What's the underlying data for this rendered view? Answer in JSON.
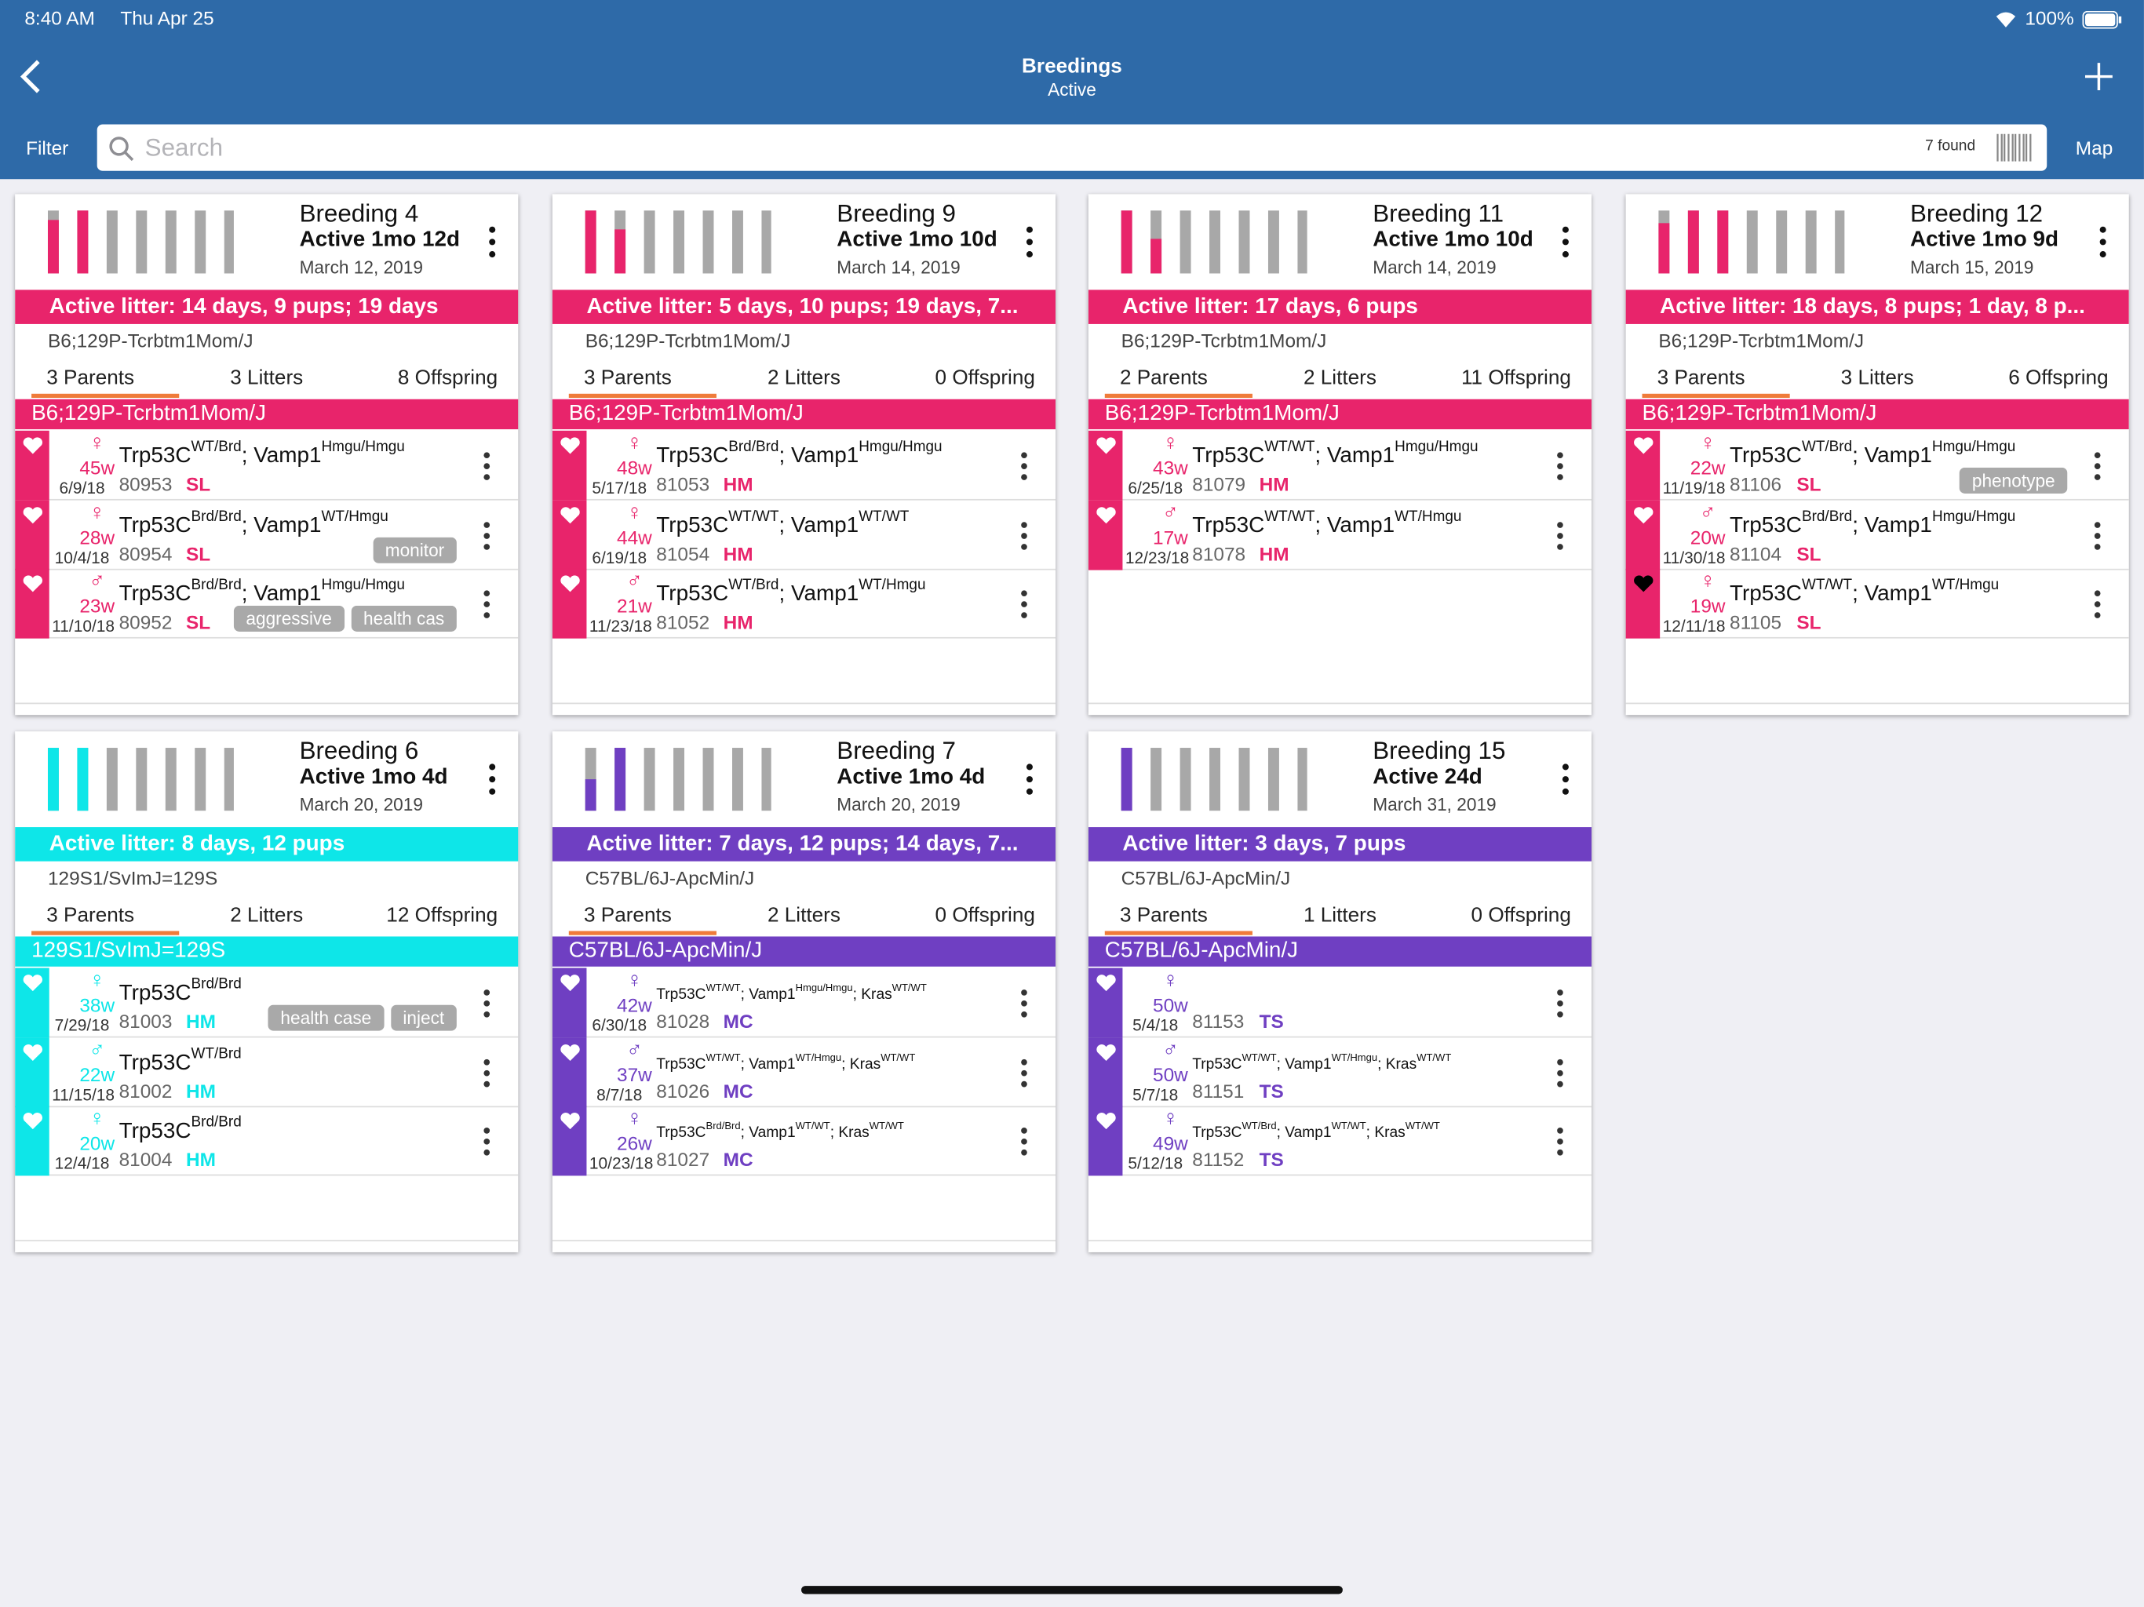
{
  "status_bar": {
    "time": "8:40 AM",
    "date": "Thu Apr 25",
    "battery": "100%"
  },
  "nav": {
    "title": "Breedings",
    "subtitle": "Active",
    "filter": "Filter",
    "search_placeholder": "Search",
    "found": "7 found",
    "map": "Map"
  },
  "cards": [
    {
      "title": "Breeding 4",
      "status": "Active 1mo 12d",
      "date": "March 12, 2019",
      "litter": "Active litter: 14 days, 9 pups; 19 days",
      "color": "#e8246b",
      "strain": "B6;129P-Tcrbtm1Mom/J",
      "parents": "3 Parents",
      "litters": "3 Litters",
      "offspring": "8 Offspring",
      "group": "B6;129P-Tcrbtm1Mom/J",
      "mice": [
        {
          "sex": "♀",
          "age": "45w",
          "dob": "6/9/18",
          "id": "80953",
          "code": "SL",
          "heart": "outline",
          "genotype": [
            {
              "text": "Trp53C",
              "sup": "WT/Brd"
            },
            {
              "text": "; Vamp1",
              "sup": "Hmgu/Hmgu"
            }
          ],
          "tags": []
        },
        {
          "sex": "♀",
          "age": "28w",
          "dob": "10/4/18",
          "id": "80954",
          "code": "SL",
          "heart": "outline",
          "genotype": [
            {
              "text": "Trp53C",
              "sup": "Brd/Brd"
            },
            {
              "text": "; Vamp1",
              "sup": "WT/Hmgu"
            }
          ],
          "tags": [
            "monitor"
          ]
        },
        {
          "sex": "♂",
          "age": "23w",
          "dob": "11/10/18",
          "id": "80952",
          "code": "SL",
          "heart": "outline",
          "genotype": [
            {
              "text": "Trp53C",
              "sup": "Brd/Brd"
            },
            {
              "text": "; Vamp1",
              "sup": "Hmgu/Hmgu"
            }
          ],
          "tags": [
            "aggressive",
            "health cas"
          ]
        }
      ]
    },
    {
      "title": "Breeding 9",
      "status": "Active 1mo 10d",
      "date": "March 14, 2019",
      "litter": "Active litter: 5 days, 10 pups; 19 days, 7...",
      "color": "#e8246b",
      "strain": "B6;129P-Tcrbtm1Mom/J",
      "parents": "3 Parents",
      "litters": "2 Litters",
      "offspring": "0 Offspring",
      "group": "B6;129P-Tcrbtm1Mom/J",
      "mice": [
        {
          "sex": "♀",
          "age": "48w",
          "dob": "5/17/18",
          "id": "81053",
          "code": "HM",
          "heart": "outline",
          "genotype": [
            {
              "text": "Trp53C",
              "sup": "Brd/Brd"
            },
            {
              "text": "; Vamp1",
              "sup": "Hmgu/Hmgu"
            }
          ],
          "tags": []
        },
        {
          "sex": "♀",
          "age": "44w",
          "dob": "6/19/18",
          "id": "81054",
          "code": "HM",
          "heart": "outline",
          "genotype": [
            {
              "text": "Trp53C",
              "sup": "WT/WT"
            },
            {
              "text": "; Vamp1",
              "sup": "WT/WT"
            }
          ],
          "tags": []
        },
        {
          "sex": "♂",
          "age": "21w",
          "dob": "11/23/18",
          "id": "81052",
          "code": "HM",
          "heart": "outline",
          "genotype": [
            {
              "text": "Trp53C",
              "sup": "WT/Brd"
            },
            {
              "text": "; Vamp1",
              "sup": "WT/Hmgu"
            }
          ],
          "tags": []
        }
      ]
    },
    {
      "title": "Breeding 11",
      "status": "Active 1mo 10d",
      "date": "March 14, 2019",
      "litter": "Active litter: 17 days, 6 pups",
      "color": "#e8246b",
      "strain": "B6;129P-Tcrbtm1Mom/J",
      "parents": "2 Parents",
      "litters": "2 Litters",
      "offspring": "11 Offspring",
      "group": "B6;129P-Tcrbtm1Mom/J",
      "mice": [
        {
          "sex": "♀",
          "age": "43w",
          "dob": "6/25/18",
          "id": "81079",
          "code": "HM",
          "heart": "outline",
          "genotype": [
            {
              "text": "Trp53C",
              "sup": "WT/WT"
            },
            {
              "text": "; Vamp1",
              "sup": "Hmgu/Hmgu"
            }
          ],
          "tags": []
        },
        {
          "sex": "♂",
          "age": "17w",
          "dob": "12/23/18",
          "id": "81078",
          "code": "HM",
          "heart": "outline",
          "genotype": [
            {
              "text": "Trp53C",
              "sup": "WT/WT"
            },
            {
              "text": "; Vamp1",
              "sup": "WT/Hmgu"
            }
          ],
          "tags": []
        }
      ]
    },
    {
      "title": "Breeding 12",
      "status": "Active 1mo 9d",
      "date": "March 15, 2019",
      "litter": "Active litter: 18 days, 8 pups; 1 day, 8 p...",
      "color": "#e8246b",
      "strain": "B6;129P-Tcrbtm1Mom/J",
      "parents": "3 Parents",
      "litters": "3 Litters",
      "offspring": "6 Offspring",
      "group": "B6;129P-Tcrbtm1Mom/J",
      "mice": [
        {
          "sex": "♀",
          "age": "22w",
          "dob": "11/19/18",
          "id": "81106",
          "code": "SL",
          "heart": "outline",
          "genotype": [
            {
              "text": "Trp53C",
              "sup": "WT/Brd"
            },
            {
              "text": "; Vamp1",
              "sup": "Hmgu/Hmgu"
            }
          ],
          "tags": [
            "phenotype"
          ]
        },
        {
          "sex": "♂",
          "age": "20w",
          "dob": "11/30/18",
          "id": "81104",
          "code": "SL",
          "heart": "outline",
          "genotype": [
            {
              "text": "Trp53C",
              "sup": "Brd/Brd"
            },
            {
              "text": "; Vamp1",
              "sup": "Hmgu/Hmgu"
            }
          ],
          "tags": []
        },
        {
          "sex": "♀",
          "age": "19w",
          "dob": "12/11/18",
          "id": "81105",
          "code": "SL",
          "heart": "filled",
          "genotype": [
            {
              "text": "Trp53C",
              "sup": "WT/WT"
            },
            {
              "text": "; Vamp1",
              "sup": "WT/Hmgu"
            }
          ],
          "tags": []
        }
      ]
    },
    {
      "title": "Breeding 6",
      "status": "Active 1mo 4d",
      "date": "March 20, 2019",
      "litter": "Active litter: 8 days, 12 pups",
      "color": "#0ee6e8",
      "strain": "129S1/SvImJ=129S",
      "parents": "3 Parents",
      "litters": "2 Litters",
      "offspring": "12 Offspring",
      "group": "129S1/SvImJ=129S",
      "mice": [
        {
          "sex": "♀",
          "age": "38w",
          "dob": "7/29/18",
          "id": "81003",
          "code": "HM",
          "heart": "outline",
          "genotype": [
            {
              "text": "Trp53C",
              "sup": "Brd/Brd"
            }
          ],
          "tags": [
            "health case",
            "inject"
          ]
        },
        {
          "sex": "♂",
          "age": "22w",
          "dob": "11/15/18",
          "id": "81002",
          "code": "HM",
          "heart": "outline",
          "genotype": [
            {
              "text": "Trp53C",
              "sup": "WT/Brd"
            }
          ],
          "tags": []
        },
        {
          "sex": "♀",
          "age": "20w",
          "dob": "12/4/18",
          "id": "81004",
          "code": "HM",
          "heart": "outline",
          "genotype": [
            {
              "text": "Trp53C",
              "sup": "Brd/Brd"
            }
          ],
          "tags": []
        }
      ]
    },
    {
      "title": "Breeding 7",
      "status": "Active 1mo 4d",
      "date": "March 20, 2019",
      "litter": "Active litter: 7 days, 12 pups; 14 days, 7...",
      "color": "#6f3fc2",
      "strain": "C57BL/6J-ApcMin/J",
      "parents": "3 Parents",
      "litters": "2 Litters",
      "offspring": "0 Offspring",
      "group": "C57BL/6J-ApcMin/J",
      "mice": [
        {
          "sex": "♀",
          "age": "42w",
          "dob": "6/30/18",
          "id": "81028",
          "code": "MC",
          "heart": "outline",
          "genotype": [
            {
              "text": "Trp53C",
              "sup": "WT/WT"
            },
            {
              "text": "; Vamp1",
              "sup": "Hmgu/Hmgu"
            },
            {
              "text": "; Kras",
              "sup": "WT/WT"
            }
          ],
          "tags": []
        },
        {
          "sex": "♂",
          "age": "37w",
          "dob": "8/7/18",
          "id": "81026",
          "code": "MC",
          "heart": "outline",
          "genotype": [
            {
              "text": "Trp53C",
              "sup": "WT/WT"
            },
            {
              "text": "; Vamp1",
              "sup": "WT/Hmgu"
            },
            {
              "text": "; Kras",
              "sup": "WT/WT"
            }
          ],
          "tags": []
        },
        {
          "sex": "♀",
          "age": "26w",
          "dob": "10/23/18",
          "id": "81027",
          "code": "MC",
          "heart": "outline",
          "genotype": [
            {
              "text": "Trp53C",
              "sup": "Brd/Brd"
            },
            {
              "text": "; Vamp1",
              "sup": "WT/WT"
            },
            {
              "text": "; Kras",
              "sup": "WT/WT"
            }
          ],
          "tags": []
        }
      ]
    },
    {
      "title": "Breeding 15",
      "status": "Active 24d",
      "date": "March 31, 2019",
      "litter": "Active litter: 3 days, 7 pups",
      "color": "#6f3fc2",
      "strain": "C57BL/6J-ApcMin/J",
      "parents": "3 Parents",
      "litters": "1 Litters",
      "offspring": "0 Offspring",
      "group": "C57BL/6J-ApcMin/J",
      "mice": [
        {
          "sex": "♀",
          "age": "50w",
          "dob": "5/4/18",
          "id": "81153",
          "code": "TS",
          "heart": "outline",
          "genotype": [],
          "tags": []
        },
        {
          "sex": "♂",
          "age": "50w",
          "dob": "5/7/18",
          "id": "81151",
          "code": "TS",
          "heart": "outline",
          "genotype": [
            {
              "text": "Trp53C",
              "sup": "WT/WT"
            },
            {
              "text": "; Vamp1",
              "sup": "WT/Hmgu"
            },
            {
              "text": "; Kras",
              "sup": "WT/WT"
            }
          ],
          "tags": []
        },
        {
          "sex": "♀",
          "age": "49w",
          "dob": "5/12/18",
          "id": "81152",
          "code": "TS",
          "heart": "outline",
          "genotype": [
            {
              "text": "Trp53C",
              "sup": "WT/Brd"
            },
            {
              "text": "; Vamp1",
              "sup": "WT/WT"
            },
            {
              "text": "; Kras",
              "sup": "WT/WT"
            }
          ],
          "tags": []
        }
      ]
    }
  ]
}
